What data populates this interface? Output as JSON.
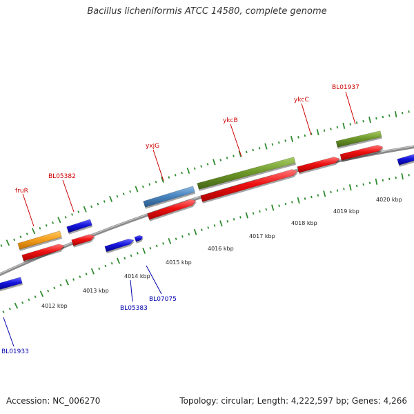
{
  "title": "Bacillus licheniformis ATCC 14580, complete genome",
  "accession": "Accession: NC_006270",
  "summary": "Topology: circular; Length: 4,222,597 bp; Genes: 4,266",
  "kbp_labels": [
    "4012 kbp",
    "4013 kbp",
    "4014 kbp",
    "4015 kbp",
    "4016 kbp",
    "4017 kbp",
    "4018 kbp",
    "4019 kbp",
    "4020 kbp"
  ],
  "gene_labels": {
    "fruR": "fruR",
    "bl05382": "BL05382",
    "yxjg": "yxjG",
    "ykcb": "ykcB",
    "ykcc": "ykcC",
    "bl01937": "BL01937",
    "bl05383": "BL05383",
    "bl07075": "BL07075",
    "bl01933": "BL01933"
  },
  "colors": {
    "backbone": "#8a8a8a",
    "ticks": "#2e8b2e",
    "cds": "#ee1111",
    "gene_orange": "#f5a020",
    "gene_blue": "#1515dd",
    "gene_steelblue": "#4a86c0",
    "gene_olive": "#6e9a2a",
    "label_red": "#cc0000",
    "label_blue": "#0000aa"
  }
}
